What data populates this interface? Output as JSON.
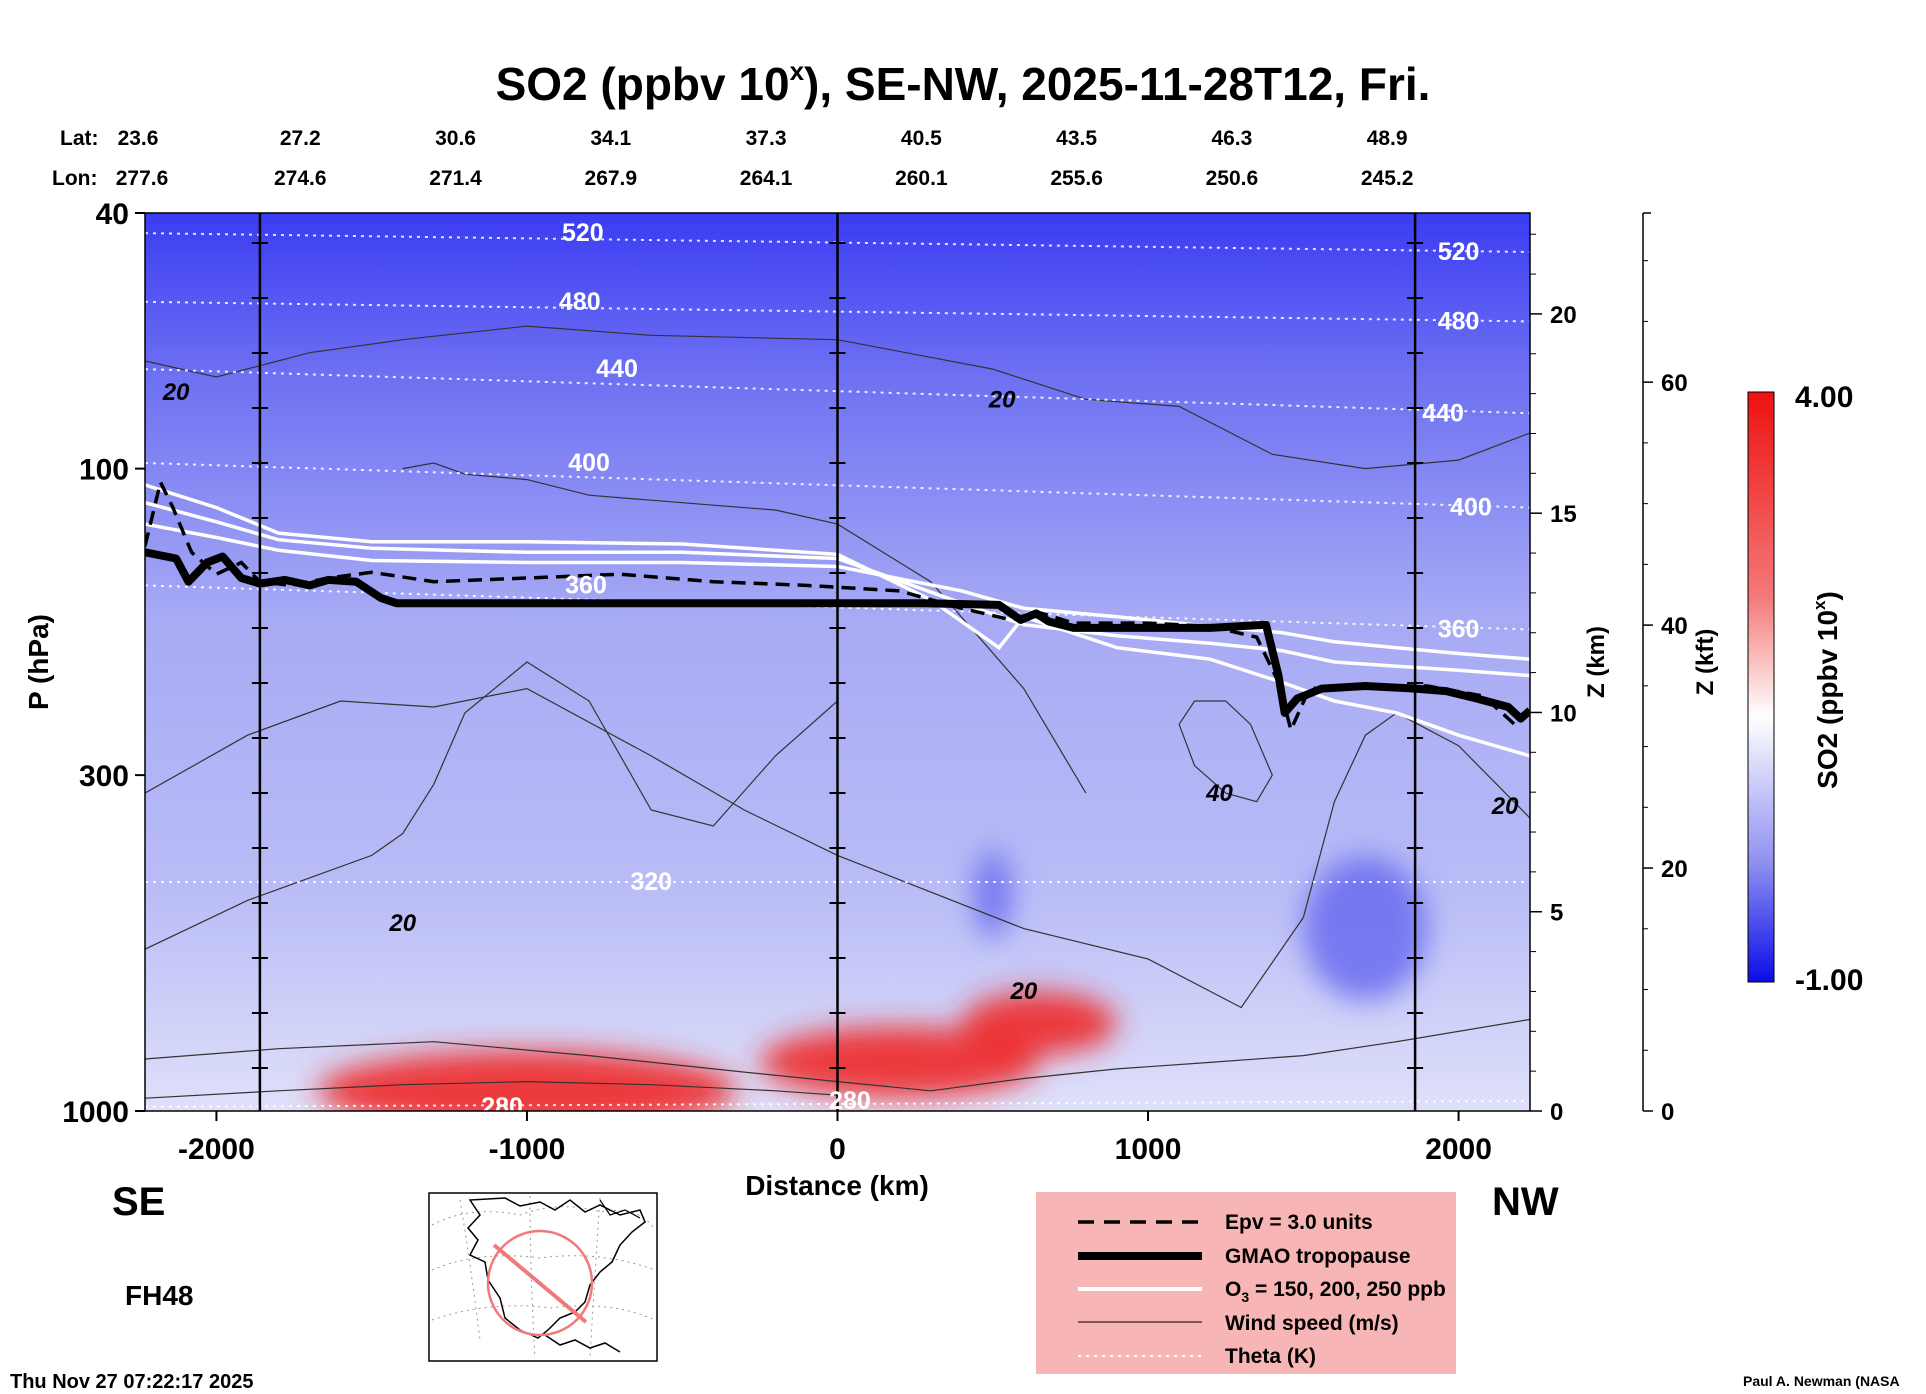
{
  "chart_data": {
    "type": "heatmap",
    "title_prefix": "SO2 (ppbv 10",
    "title_sup": "x",
    "title_suffix": "), SE-NW, 2025-11-28T12, Fri.",
    "xlabel": "Distance (km)",
    "ylabel": "P (hPa)",
    "y2label": "Z (km)",
    "y3label": "Z (kft)",
    "colorbar_label_prefix": "SO2 (ppbv 10",
    "colorbar_label_sup": "x",
    "colorbar_label_suffix": ")",
    "xlim": [
      -2230,
      2230
    ],
    "ylim_hpa": [
      1000,
      40
    ],
    "y_scale": "log",
    "x_ticks": [
      "-2000",
      "-1000",
      "0",
      "1000",
      "2000"
    ],
    "x_tick_values": [
      -2000,
      -1000,
      0,
      1000,
      2000
    ],
    "y_ticks": [
      "40",
      "100",
      "300",
      "1000"
    ],
    "y_tick_values": [
      40,
      100,
      300,
      1000
    ],
    "z_km_ticks": [
      "20",
      "15",
      "10",
      "5",
      "0"
    ],
    "z_km_values": [
      20,
      15,
      10,
      5,
      0
    ],
    "z_kft_ticks": [
      "60",
      "40",
      "20",
      "0"
    ],
    "z_kft_values": [
      60,
      40,
      20,
      0
    ],
    "colorbar": {
      "max_label": "4.00",
      "min_label": "-1.00",
      "min": -1.0,
      "max": 4.0
    },
    "lat_label": "Lat:",
    "lon_label": "Lon:",
    "lat_values": [
      "23.6",
      "27.2",
      "30.6",
      "34.1",
      "37.3",
      "40.5",
      "43.5",
      "46.3",
      "48.9"
    ],
    "lon_values": [
      "277.6",
      "274.6",
      "271.4",
      "267.9",
      "264.1",
      "260.1",
      "255.6",
      "250.6",
      "245.2"
    ],
    "latlon_x": [
      -2230,
      -1730,
      -1230,
      -730,
      -230,
      270,
      770,
      1270,
      1770
    ],
    "vertical_lines_x": [
      -1860,
      0,
      1860
    ],
    "theta_labels": [
      {
        "text": "520",
        "x": -820,
        "p": 43
      },
      {
        "text": "480",
        "x": -830,
        "p": 55
      },
      {
        "text": "440",
        "x": -710,
        "p": 70
      },
      {
        "text": "400",
        "x": -800,
        "p": 98
      },
      {
        "text": "360",
        "x": -810,
        "p": 152
      },
      {
        "text": "320",
        "x": -600,
        "p": 440
      },
      {
        "text": "280",
        "x": -1080,
        "p": 985
      },
      {
        "text": "280",
        "x": 40,
        "p": 965
      },
      {
        "text": "520",
        "x": 2000,
        "p": 46
      },
      {
        "text": "480",
        "x": 2000,
        "p": 59
      },
      {
        "text": "440",
        "x": 1950,
        "p": 82
      },
      {
        "text": "400",
        "x": 2040,
        "p": 115
      },
      {
        "text": "360",
        "x": 2000,
        "p": 178
      }
    ],
    "wind_labels": [
      {
        "text": "20",
        "x": -2130,
        "p": 76
      },
      {
        "text": "20",
        "x": 530,
        "p": 78
      },
      {
        "text": "40",
        "x": 1230,
        "p": 320
      },
      {
        "text": "20",
        "x": 2150,
        "p": 335
      },
      {
        "text": "20",
        "x": -1400,
        "p": 510
      },
      {
        "text": "20",
        "x": 600,
        "p": 650
      }
    ],
    "tropopause": {
      "x": [
        -2230,
        -2130,
        -2090,
        -2030,
        -1980,
        -1920,
        -1860,
        -1780,
        -1700,
        -1640,
        -1550,
        -1470,
        -1420,
        -1340,
        -1200,
        0,
        280,
        520,
        590,
        640,
        680,
        760,
        900,
        1050,
        1200,
        1380,
        1420,
        1440,
        1480,
        1560,
        1700,
        1860,
        1960,
        2060,
        2160,
        2200,
        2230
      ],
      "p": [
        135,
        138,
        150,
        140,
        137,
        148,
        151,
        149,
        152,
        149,
        150,
        159,
        162,
        162,
        162,
        162,
        162,
        163,
        172,
        168,
        173,
        177,
        177,
        177,
        177,
        175,
        210,
        240,
        228,
        220,
        218,
        220,
        222,
        228,
        235,
        245,
        238
      ]
    },
    "epv_3": {
      "x": [
        -2230,
        -2180,
        -2140,
        -2080,
        -2000,
        -1920,
        -1860,
        -1760,
        -1640,
        -1500,
        -1300,
        -1000,
        -700,
        -400,
        -100,
        200,
        400,
        560,
        640,
        760,
        1000,
        1200,
        1350,
        1420,
        1460,
        1520,
        1700,
        1900,
        2080,
        2180,
        2230
      ],
      "p": [
        132,
        105,
        115,
        135,
        146,
        140,
        150,
        152,
        148,
        145,
        150,
        148,
        146,
        150,
        152,
        155,
        165,
        172,
        167,
        174,
        174,
        176,
        183,
        215,
        255,
        220,
        218,
        218,
        226,
        250,
        240
      ]
    },
    "o3_contours": [
      {
        "name": "O3 150 ppb",
        "x": [
          -2230,
          -2000,
          -1800,
          -1500,
          -1000,
          -500,
          0,
          400,
          600,
          900,
          1200,
          1430,
          1600,
          1800,
          2000,
          2230
        ],
        "p": [
          122,
          128,
          134,
          139,
          140,
          140,
          142,
          155,
          165,
          170,
          176,
          180,
          186,
          190,
          194,
          198
        ]
      },
      {
        "name": "O3 200 ppb",
        "x": [
          -2230,
          -2000,
          -1800,
          -1500,
          -1000,
          -500,
          0,
          400,
          600,
          900,
          1200,
          1430,
          1600,
          1800,
          2000,
          2230
        ],
        "p": [
          113,
          121,
          129,
          133,
          135,
          135,
          138,
          162,
          175,
          182,
          187,
          192,
          200,
          203,
          206,
          210
        ]
      },
      {
        "name": "O3 250 ppb",
        "x": [
          -2230,
          -2000,
          -1800,
          -1500,
          -1000,
          -500,
          0,
          300,
          520,
          600,
          900,
          1200,
          1430,
          1600,
          1800,
          2000,
          2230
        ],
        "p": [
          106,
          115,
          126,
          130,
          130,
          131,
          136,
          160,
          190,
          170,
          190,
          198,
          215,
          230,
          240,
          260,
          280
        ]
      }
    ],
    "wind_contours": [
      {
        "x": [
          -2230,
          -2000,
          -1700,
          -1400,
          -1000,
          -600,
          0,
          500,
          800,
          1100,
          1400,
          1700,
          2000,
          2230
        ],
        "p": [
          68,
          72,
          66,
          63,
          60,
          62,
          63,
          70,
          78,
          80,
          95,
          100,
          97,
          88
        ]
      },
      {
        "x": [
          -2230,
          -1900,
          -1600,
          -1300,
          -1000,
          -600,
          -300,
          0,
          600,
          1000,
          1300,
          1500,
          1600,
          1700,
          1800,
          2000,
          2230
        ],
        "p": [
          320,
          260,
          230,
          235,
          220,
          280,
          340,
          400,
          520,
          580,
          690,
          500,
          330,
          260,
          240,
          270,
          350
        ]
      },
      {
        "x": [
          -2230,
          -1900,
          -1500,
          -1400,
          -1300,
          -1200,
          -1000,
          -800,
          -600,
          -400,
          -200,
          0
        ],
        "p": [
          560,
          470,
          400,
          370,
          310,
          240,
          200,
          230,
          340,
          360,
          280,
          230
        ]
      },
      {
        "x": [
          -1400,
          -1300,
          -1200,
          -1000,
          -800,
          -600,
          -400,
          -200,
          0,
          300,
          600,
          800
        ],
        "p": [
          100,
          98,
          102,
          104,
          110,
          112,
          114,
          116,
          122,
          150,
          220,
          320
        ]
      },
      {
        "x": [
          1100,
          1150,
          1250,
          1330,
          1400,
          1350,
          1250,
          1150,
          1100
        ],
        "p": [
          250,
          230,
          230,
          250,
          300,
          330,
          320,
          290,
          250
        ]
      },
      {
        "x": [
          -2230,
          -1800,
          -1300,
          -800,
          -300,
          0,
          300,
          600,
          900,
          1200,
          1500,
          1800,
          2230
        ],
        "p": [
          830,
          800,
          780,
          820,
          870,
          900,
          930,
          890,
          860,
          840,
          820,
          780,
          720
        ]
      },
      {
        "x": [
          -2230,
          -1800,
          -1400,
          -1000,
          -600,
          -200,
          0
        ],
        "p": [
          955,
          930,
          910,
          900,
          910,
          930,
          945
        ]
      }
    ],
    "so2_anomalies": [
      {
        "kind": "high",
        "x": -1000,
        "p": 930,
        "rx": 1350,
        "ry_frac": 0.045
      },
      {
        "kind": "high",
        "x": 200,
        "p": 840,
        "rx": 900,
        "ry_frac": 0.04
      },
      {
        "kind": "high",
        "x": 650,
        "p": 730,
        "rx": 500,
        "ry_frac": 0.035
      },
      {
        "kind": "low",
        "x": 1700,
        "p": 520,
        "rx": 400,
        "ry_frac": 0.08
      },
      {
        "kind": "low",
        "x": 500,
        "p": 460,
        "rx": 120,
        "ry_frac": 0.05
      }
    ],
    "legend": [
      {
        "label": "Epv = 3.0 units",
        "style": "dashed-black"
      },
      {
        "label": "GMAO tropopause",
        "style": "thick-black"
      },
      {
        "label_prefix": "O",
        "label_sub": "3",
        "label_suffix": " = 150, 200, 250 ppb",
        "style": "white"
      },
      {
        "label": "Wind speed (m/s)",
        "style": "thin-black"
      },
      {
        "label": "Theta (K)",
        "style": "dotted-white"
      }
    ],
    "direction_left": "SE",
    "direction_right": "NW",
    "forecast_hour": "FH48",
    "timestamp": "Thu Nov 27 07:22:17 2025",
    "credit": "Paul A. Newman (NASA"
  }
}
